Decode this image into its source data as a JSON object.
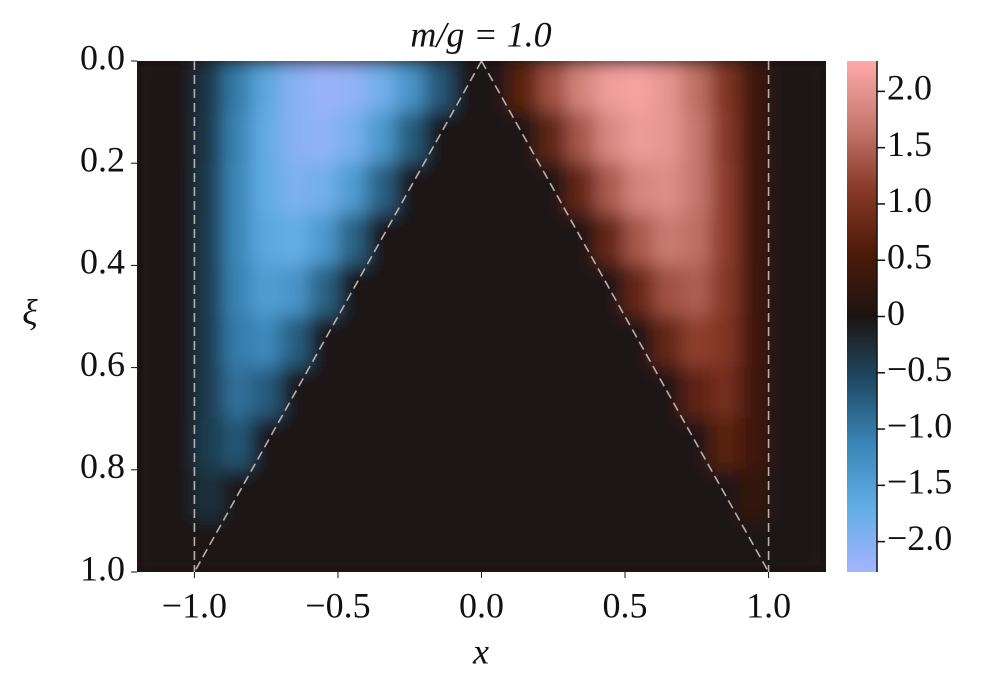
{
  "chart_data": {
    "type": "heatmap",
    "title": "m/g = 1.0",
    "x_label": "x",
    "y_label": "ξ",
    "x": [
      -1.15,
      -1.05,
      -0.95,
      -0.85,
      -0.75,
      -0.65,
      -0.55,
      -0.45,
      -0.35,
      -0.25,
      -0.15,
      -0.05,
      0.05,
      0.15,
      0.25,
      0.35,
      0.45,
      0.55,
      0.65,
      0.75,
      0.85,
      0.95,
      1.05,
      1.15
    ],
    "y": [
      0.05,
      0.15,
      0.25,
      0.35,
      0.45,
      0.55,
      0.65,
      0.75,
      0.85,
      0.95
    ],
    "z": [
      [
        0,
        0,
        -0.36,
        -1.04,
        -1.61,
        -2.01,
        -2.18,
        -2.12,
        -1.83,
        -1.34,
        -0.71,
        0,
        0,
        0.71,
        1.34,
        1.83,
        2.12,
        2.18,
        2.01,
        1.61,
        1.04,
        0.36,
        0,
        0
      ],
      [
        0,
        0,
        -0.39,
        -1.11,
        -1.68,
        -2.02,
        -2.09,
        -1.88,
        -1.41,
        -0.76,
        0,
        0,
        0,
        0,
        0.76,
        1.41,
        1.88,
        2.09,
        2.02,
        1.68,
        1.11,
        0.39,
        0,
        0
      ],
      [
        0,
        0,
        -0.4,
        -1.14,
        -1.68,
        -1.93,
        -1.84,
        -1.44,
        -0.79,
        0,
        0,
        0,
        0,
        0,
        0,
        0.79,
        1.44,
        1.84,
        1.93,
        1.68,
        1.14,
        0.4,
        0,
        0
      ],
      [
        0,
        0,
        -0.41,
        -1.14,
        -1.61,
        -1.71,
        -1.42,
        -0.8,
        0,
        0,
        0,
        0,
        0,
        0,
        0,
        0,
        0.8,
        1.42,
        1.71,
        1.61,
        1.14,
        0.41,
        0,
        0
      ],
      [
        0,
        0,
        -0.41,
        -1.11,
        -1.46,
        -1.34,
        -0.8,
        0,
        0,
        0,
        0,
        0,
        0,
        0,
        0,
        0,
        0,
        0.8,
        1.34,
        1.46,
        1.11,
        0.41,
        0,
        0
      ],
      [
        0,
        0,
        -0.41,
        -1.04,
        -1.18,
        -0.77,
        0,
        0,
        0,
        0,
        0,
        0,
        0,
        0,
        0,
        0,
        0,
        0,
        0.77,
        1.18,
        1.04,
        0.41,
        0,
        0
      ],
      [
        0,
        0,
        -0.41,
        -0.93,
        -0.74,
        0,
        0,
        0,
        0,
        0,
        0,
        0,
        0,
        0,
        0,
        0,
        0,
        0,
        0,
        0.74,
        0.93,
        0.41,
        0,
        0
      ],
      [
        0,
        0,
        -0.42,
        -0.68,
        0,
        0,
        0,
        0,
        0,
        0,
        0,
        0,
        0,
        0,
        0,
        0,
        0,
        0,
        0,
        0,
        0.68,
        0.42,
        0,
        0
      ],
      [
        0,
        0,
        -0.3,
        0,
        0,
        0,
        0,
        0,
        0,
        0,
        0,
        0,
        0,
        0,
        0,
        0,
        0,
        0,
        0,
        0,
        0,
        0.3,
        0,
        0
      ],
      [
        0,
        0,
        0,
        0,
        0,
        0,
        0,
        0,
        0,
        0,
        0,
        0,
        0,
        0,
        0,
        0,
        0,
        0,
        0,
        0,
        0,
        0,
        0,
        0
      ]
    ],
    "xlim": [
      -1.2,
      1.2
    ],
    "ylim": [
      0,
      1
    ],
    "xticks": [
      {
        "value": -1.0,
        "label": "−1.0"
      },
      {
        "value": -0.5,
        "label": "−0.5"
      },
      {
        "value": 0.0,
        "label": "0.0"
      },
      {
        "value": 0.5,
        "label": "0.5"
      },
      {
        "value": 1.0,
        "label": "1.0"
      }
    ],
    "yticks": [
      {
        "value": 0.0,
        "label": "0.0"
      },
      0.2,
      0.4,
      0.6,
      0.8,
      {
        "value": 1.0,
        "label": "1.0"
      }
    ],
    "clim": [
      -2.27,
      2.27
    ],
    "cticks": [
      {
        "value": 2.0,
        "label": "2.0"
      },
      1.5,
      {
        "value": 1.0,
        "label": "1.0"
      },
      0.5,
      0,
      {
        "value": -0.5,
        "label": "−0.5"
      },
      {
        "value": -1.0,
        "label": "−1.0"
      },
      {
        "value": -1.5,
        "label": "−1.5"
      },
      {
        "value": -2.0,
        "label": "−2.0"
      }
    ],
    "colormap": [
      "#a5b4ff",
      "#62aee6",
      "#3a86b8",
      "#1e4a64",
      "#1c1412",
      "#4e1a08",
      "#8a3a28",
      "#c87a70",
      "#ffaaaa"
    ],
    "reference_lines": [
      {
        "x": [
          -1,
          -1
        ],
        "y": [
          0,
          1
        ]
      },
      {
        "x": [
          1,
          1
        ],
        "y": [
          0,
          1
        ]
      },
      {
        "x": [
          0,
          -1
        ],
        "y": [
          0,
          1
        ]
      },
      {
        "x": [
          0,
          1
        ],
        "y": [
          0,
          1
        ]
      }
    ],
    "reference_color": "#b8b0ac"
  }
}
